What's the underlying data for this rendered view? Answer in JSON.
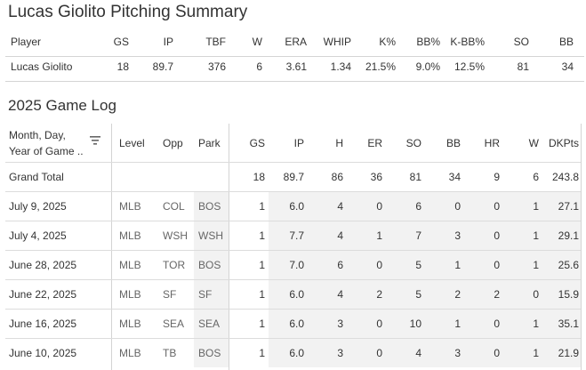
{
  "summary": {
    "title": "Lucas Giolito Pitching Summary",
    "headers": [
      "Player",
      "GS",
      "IP",
      "TBF",
      "W",
      "ERA",
      "WHIP",
      "K%",
      "BB%",
      "K-BB%",
      "SO",
      "BB"
    ],
    "values": [
      "Lucas Giolito",
      "18",
      "89.7",
      "376",
      "6",
      "3.61",
      "1.34",
      "21.5%",
      "9.0%",
      "12.5%",
      "81",
      "34"
    ]
  },
  "game_log": {
    "title": "2025 Game Log",
    "headers": {
      "date_line1": "Month, Day,",
      "date_line2": "Year of Game ..",
      "level": "Level",
      "opp": "Opp",
      "park": "Park",
      "gs": "GS",
      "ip": "IP",
      "h": "H",
      "er": "ER",
      "so": "SO",
      "bb": "BB",
      "hr": "HR",
      "w": "W",
      "dkpts": "DKPts"
    },
    "total": {
      "label": "Grand Total",
      "level": "",
      "opp": "",
      "park": "",
      "gs": "18",
      "ip": "89.7",
      "h": "86",
      "er": "36",
      "so": "81",
      "bb": "34",
      "hr": "9",
      "w": "6",
      "dkpts": "243.8"
    },
    "rows": [
      {
        "date": "July 9, 2025",
        "level": "MLB",
        "opp": "COL",
        "park": "BOS",
        "gs": "1",
        "ip": "6.0",
        "h": "4",
        "er": "0",
        "so": "6",
        "bb": "0",
        "hr": "0",
        "w": "1",
        "dkpts": "27.1"
      },
      {
        "date": "July 4, 2025",
        "level": "MLB",
        "opp": "WSH",
        "park": "WSH",
        "gs": "1",
        "ip": "7.7",
        "h": "4",
        "er": "1",
        "so": "7",
        "bb": "3",
        "hr": "0",
        "w": "1",
        "dkpts": "29.1"
      },
      {
        "date": "June 28, 2025",
        "level": "MLB",
        "opp": "TOR",
        "park": "BOS",
        "gs": "1",
        "ip": "7.0",
        "h": "6",
        "er": "0",
        "so": "5",
        "bb": "1",
        "hr": "0",
        "w": "1",
        "dkpts": "25.6"
      },
      {
        "date": "June 22, 2025",
        "level": "MLB",
        "opp": "SF",
        "park": "SF",
        "gs": "1",
        "ip": "6.0",
        "h": "4",
        "er": "2",
        "so": "5",
        "bb": "2",
        "hr": "2",
        "w": "0",
        "dkpts": "15.9"
      },
      {
        "date": "June 16, 2025",
        "level": "MLB",
        "opp": "SEA",
        "park": "SEA",
        "gs": "1",
        "ip": "6.0",
        "h": "3",
        "er": "0",
        "so": "10",
        "bb": "1",
        "hr": "0",
        "w": "1",
        "dkpts": "35.1"
      },
      {
        "date": "June 10, 2025",
        "level": "MLB",
        "opp": "TB",
        "park": "BOS",
        "gs": "1",
        "ip": "6.0",
        "h": "3",
        "er": "0",
        "so": "4",
        "bb": "3",
        "hr": "0",
        "w": "1",
        "dkpts": "21.9"
      }
    ],
    "sort_icon": "sort-descending-icon"
  }
}
